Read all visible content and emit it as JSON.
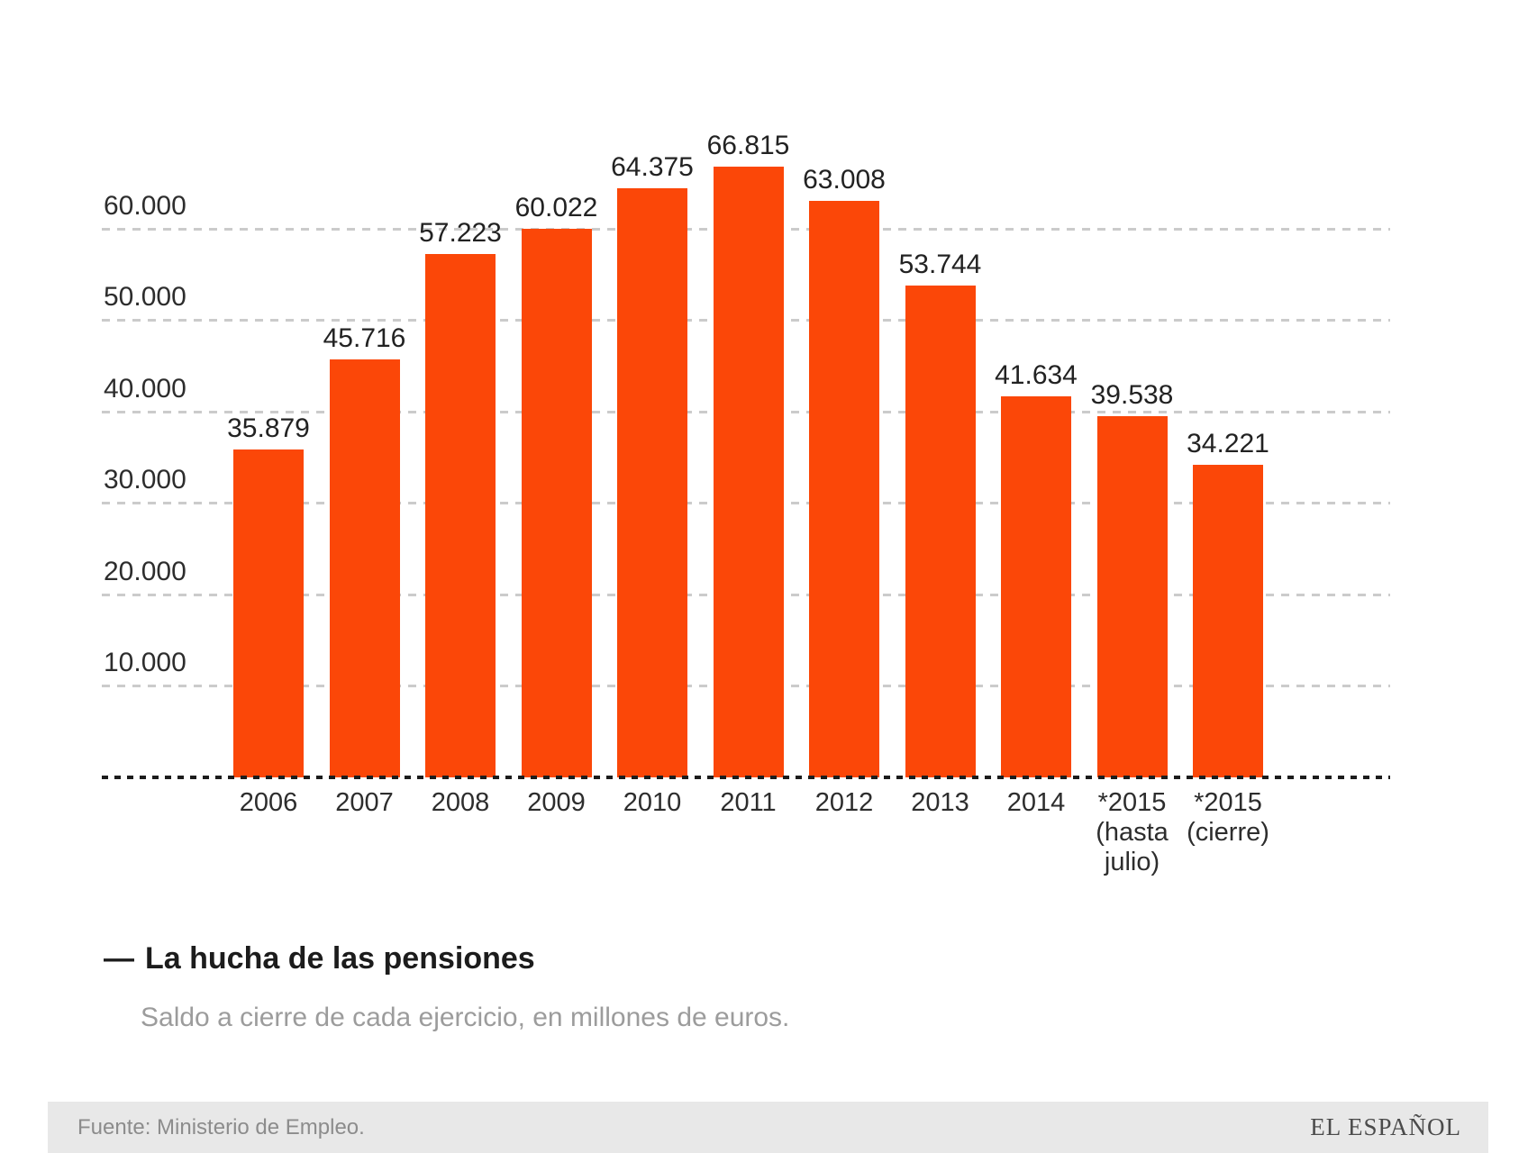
{
  "chart_data": {
    "type": "bar",
    "title": "La hucha de las pensiones",
    "title_dash": "—",
    "subtitle": "Saldo a cierre de cada ejercicio, en millones de euros.",
    "categories": [
      [
        "2006"
      ],
      [
        "2007"
      ],
      [
        "2008"
      ],
      [
        "2009"
      ],
      [
        "2010"
      ],
      [
        "2011"
      ],
      [
        "2012"
      ],
      [
        "2013"
      ],
      [
        "2014"
      ],
      [
        "*2015",
        "(hasta",
        "julio)"
      ],
      [
        "*2015",
        "(cierre)"
      ]
    ],
    "values": [
      35879,
      45716,
      57223,
      60022,
      64375,
      66815,
      63008,
      53744,
      41634,
      39538,
      34221
    ],
    "value_labels": [
      "35.879",
      "45.716",
      "57.223",
      "60.022",
      "64.375",
      "66.815",
      "63.008",
      "53.744",
      "41.634",
      "39.538",
      "34.221"
    ],
    "y_axis": {
      "tick_values": [
        10000,
        20000,
        30000,
        40000,
        50000,
        60000
      ],
      "tick_labels": [
        "10.000",
        "20.000",
        "30.000",
        "40.000",
        "50.000",
        "60.000"
      ],
      "range": [
        0,
        68000
      ]
    },
    "bar_color": "#fb4708",
    "gridline_color": "#cbcbcb",
    "baseline_color": "#1c1c1c",
    "grid": true,
    "legend_position": "none"
  },
  "footer": {
    "source": "Fuente: Ministerio de Empleo.",
    "brand": "EL ESPAÑOL",
    "background": "#e8e8e8"
  }
}
